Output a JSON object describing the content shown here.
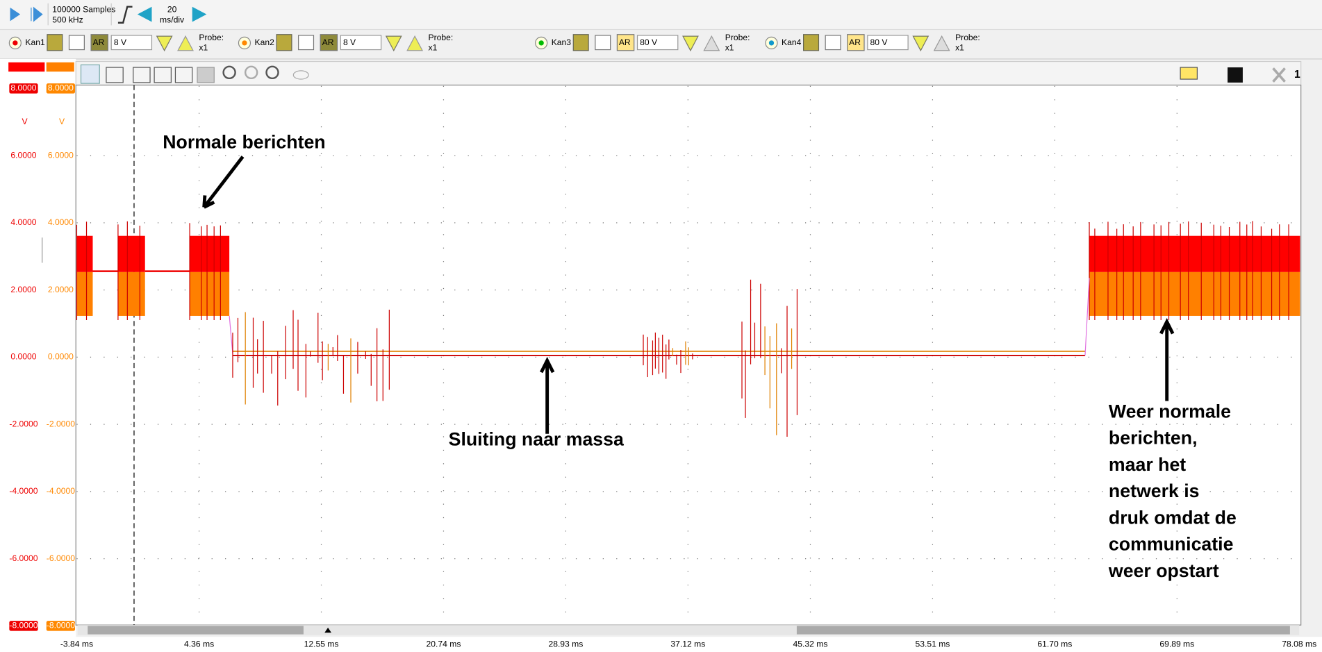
{
  "toolbar": {
    "samples": "100000 Samples",
    "rate": "500 kHz",
    "timebase_value": "20",
    "timebase_unit": "ms/div"
  },
  "channels": [
    {
      "name": "Kan1",
      "range": "8 V",
      "probe": "Probe:",
      "probe_value": "x1"
    },
    {
      "name": "Kan2",
      "range": "8 V",
      "probe": "Probe:",
      "probe_value": "x1"
    },
    {
      "name": "Kan3",
      "range": "80 V",
      "probe": "Probe:",
      "probe_value": "x1"
    },
    {
      "name": "Kan4",
      "range": "80 V",
      "probe": "Probe:",
      "probe_value": "x1"
    }
  ],
  "scope": {
    "y_unit": "V",
    "y_ticks": [
      {
        "value": 8,
        "label": "8.0000"
      },
      {
        "value": 6,
        "label": "6.0000"
      },
      {
        "value": 4,
        "label": "4.0000"
      },
      {
        "value": 2,
        "label": "2.0000"
      },
      {
        "value": 0,
        "label": "0.0000"
      },
      {
        "value": -2,
        "label": "-2.0000"
      },
      {
        "value": -4,
        "label": "-4.0000"
      },
      {
        "value": -6,
        "label": "-6.0000"
      },
      {
        "value": -8,
        "label": "-8.0000"
      }
    ],
    "x_ticks": [
      {
        "value": -3.84,
        "label": "-3.84 ms"
      },
      {
        "value": 4.36,
        "label": "4.36 ms"
      },
      {
        "value": 12.55,
        "label": "12.55 ms"
      },
      {
        "value": 20.74,
        "label": "20.74 ms"
      },
      {
        "value": 28.93,
        "label": "28.93 ms"
      },
      {
        "value": 37.12,
        "label": "37.12 ms"
      },
      {
        "value": 45.32,
        "label": "45.32 ms"
      },
      {
        "value": 53.51,
        "label": "53.51 ms"
      },
      {
        "value": 61.7,
        "label": "61.70 ms"
      },
      {
        "value": 69.89,
        "label": "69.89 ms"
      },
      {
        "value": 78.08,
        "label": "78.08 ms"
      }
    ],
    "cursor_count": "1",
    "annotations": {
      "normal": "Normale berichten",
      "short": "Sluiting naar massa",
      "restart": [
        "Weer normale",
        "berichten,",
        "maar het",
        "netwerk is",
        "druk omdat de",
        "communicatie",
        "weer opstart"
      ]
    }
  }
}
